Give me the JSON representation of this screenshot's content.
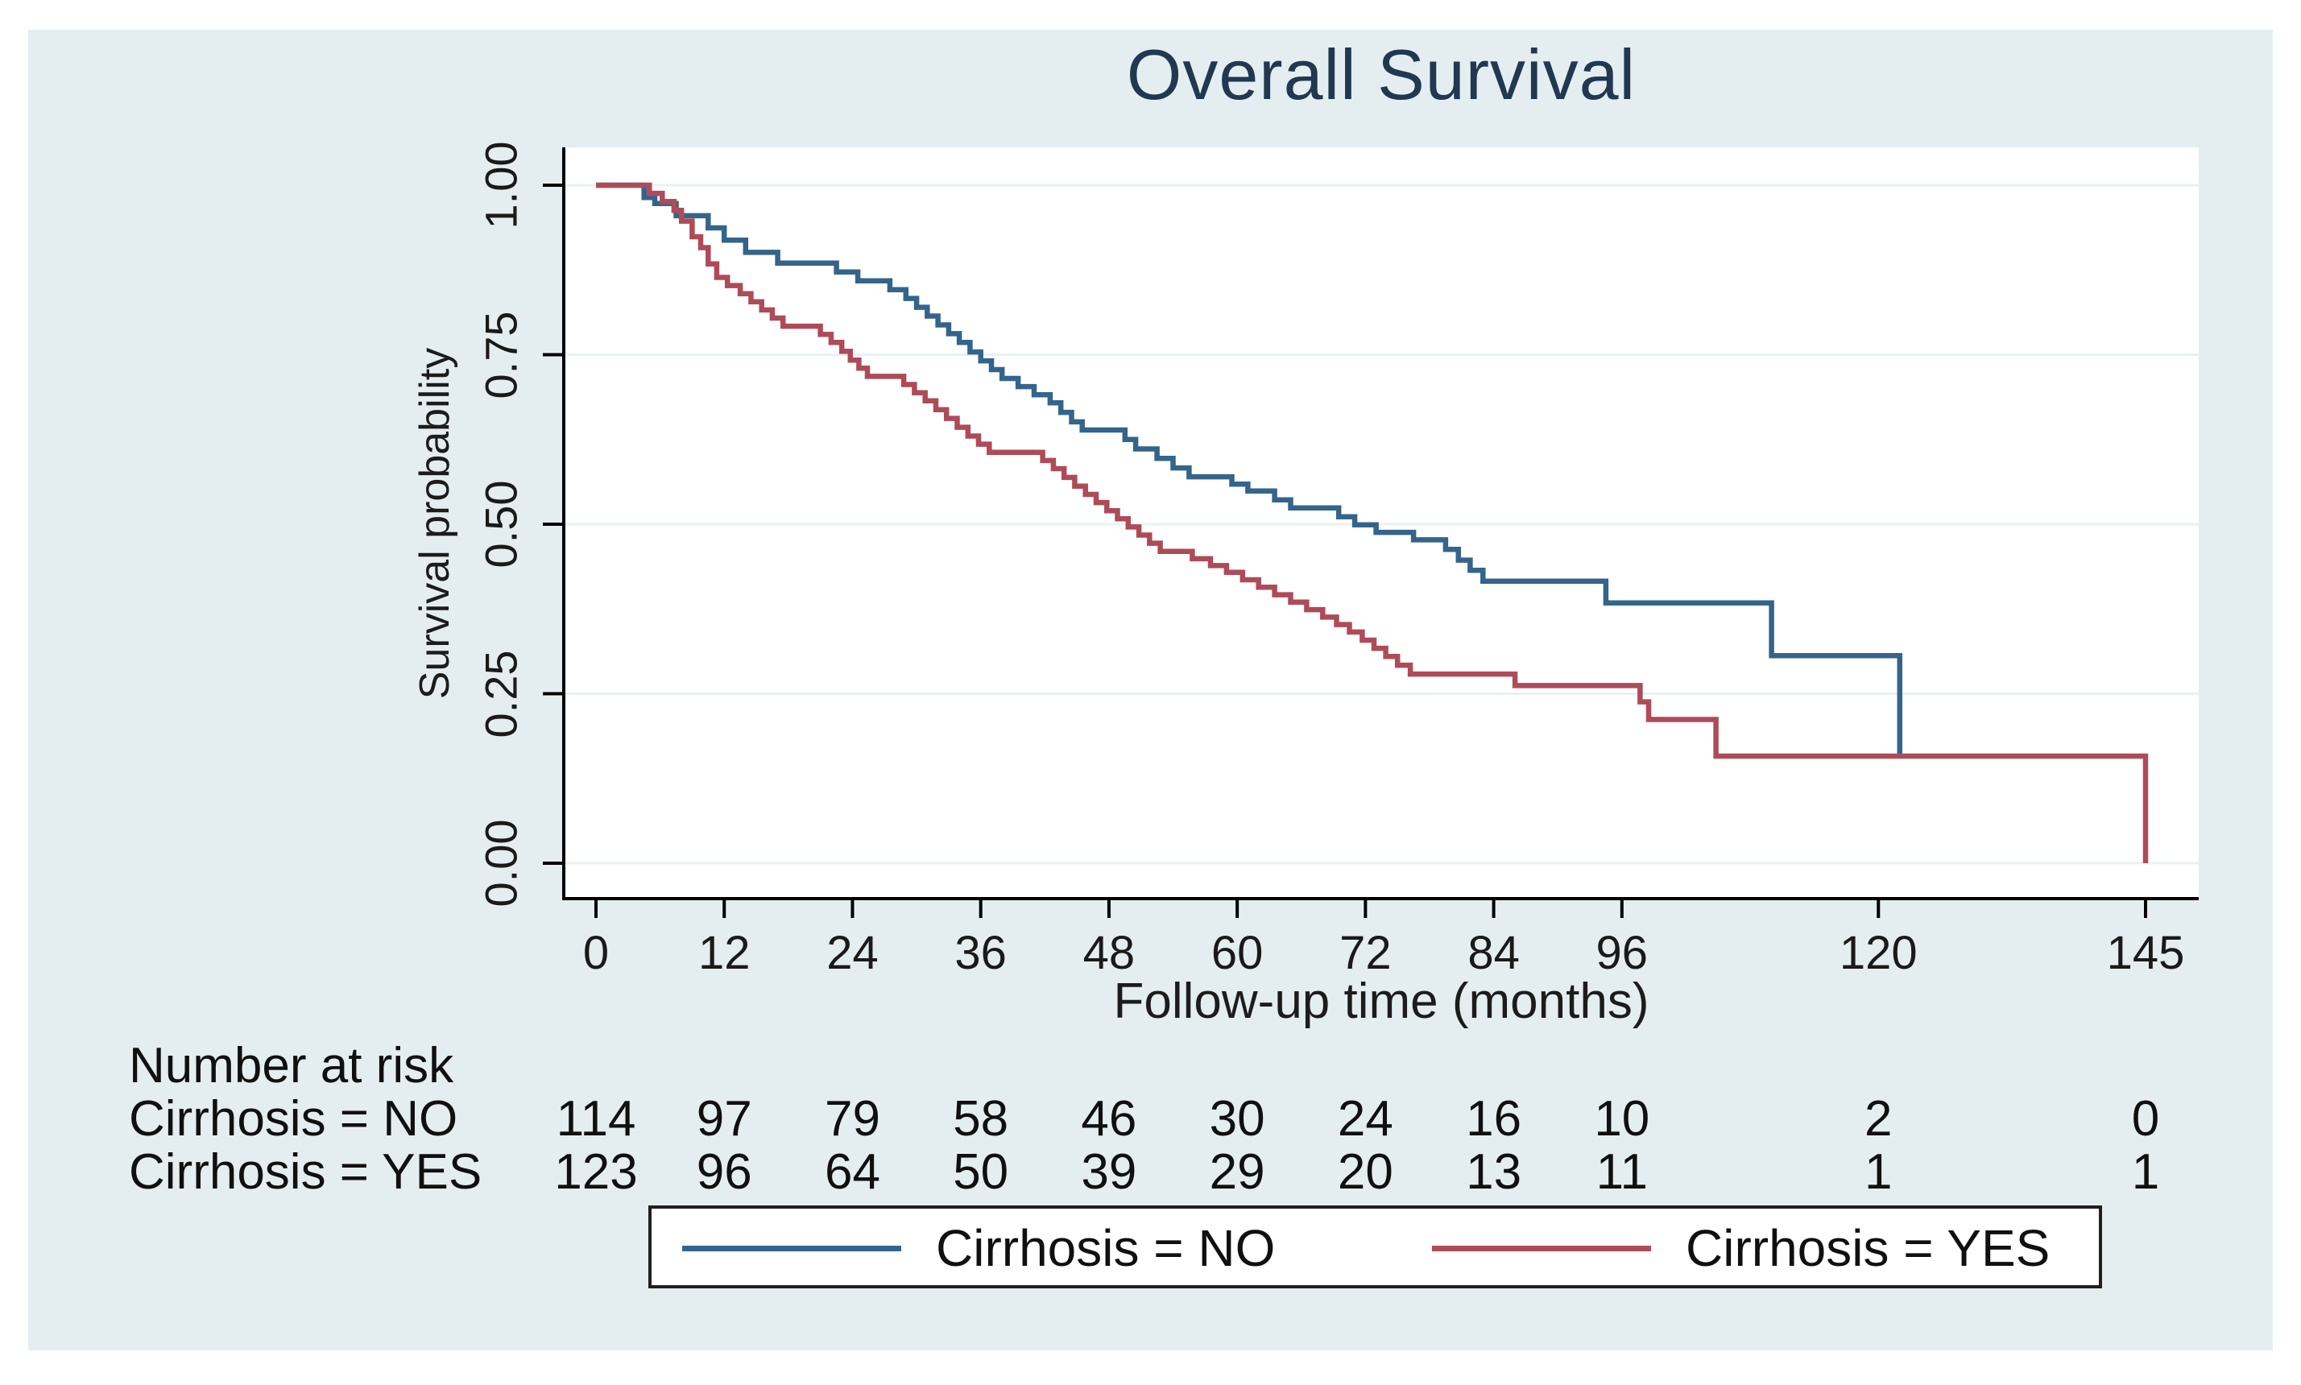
{
  "title": "Overall Survival",
  "axes": {
    "x_title": "Follow-up time (months)",
    "y_title": "Survival probability",
    "x_tick_labels": [
      "0",
      "12",
      "24",
      "36",
      "48",
      "60",
      "72",
      "84",
      "96",
      "120",
      "145"
    ],
    "y_tick_labels": [
      "0.00",
      "0.25",
      "0.50",
      "0.75",
      "1.00"
    ]
  },
  "risk_table": {
    "header": "Number at risk",
    "rows": [
      {
        "label": "Cirrhosis = NO",
        "values": [
          "114",
          "97",
          "79",
          "58",
          "46",
          "30",
          "24",
          "16",
          "10",
          "2",
          "0"
        ]
      },
      {
        "label": "Cirrhosis = YES",
        "values": [
          "123",
          "96",
          "64",
          "50",
          "39",
          "29",
          "20",
          "13",
          "11",
          "1",
          "1"
        ]
      }
    ]
  },
  "legend": {
    "items": [
      {
        "label": "Cirrhosis = NO",
        "color": "#35648b"
      },
      {
        "label": "Cirrhosis = YES",
        "color": "#ae4b59"
      }
    ]
  },
  "colors": {
    "panel_background": "#e4eef1",
    "plot_background": "#ffffff",
    "gridline": "#e9f1f3",
    "axis": "#000000",
    "title_text": "#223851",
    "body_text": "#101010",
    "series_no": "#35648b",
    "series_yes": "#ae4b59"
  },
  "chart_data": {
    "type": "line",
    "subtype": "kaplan-meier-step",
    "title": "Overall Survival",
    "xlabel": "Follow-up time (months)",
    "ylabel": "Survival probability",
    "xlim": [
      0,
      145
    ],
    "ylim": [
      0.0,
      1.0
    ],
    "x_ticks": [
      0,
      12,
      24,
      36,
      48,
      60,
      72,
      84,
      96,
      120,
      145
    ],
    "y_ticks": [
      0.0,
      0.25,
      0.5,
      0.75,
      1.0
    ],
    "grid": "horizontal",
    "legend_position": "bottom",
    "series": [
      {
        "name": "Cirrhosis = NO",
        "color": "#35648b",
        "step_points": [
          [
            0,
            1.0
          ],
          [
            4.5,
            0.982
          ],
          [
            5.5,
            0.973
          ],
          [
            7.5,
            0.955
          ],
          [
            10.5,
            0.937
          ],
          [
            12,
            0.919
          ],
          [
            14,
            0.901
          ],
          [
            17,
            0.885
          ],
          [
            22.5,
            0.872
          ],
          [
            24.5,
            0.859
          ],
          [
            27.5,
            0.846
          ],
          [
            29,
            0.833
          ],
          [
            30,
            0.82
          ],
          [
            31,
            0.807
          ],
          [
            32,
            0.794
          ],
          [
            33,
            0.781
          ],
          [
            34,
            0.768
          ],
          [
            35,
            0.754
          ],
          [
            36,
            0.741
          ],
          [
            37,
            0.728
          ],
          [
            38,
            0.715
          ],
          [
            39.5,
            0.703
          ],
          [
            41,
            0.691
          ],
          [
            42.5,
            0.679
          ],
          [
            43.5,
            0.665
          ],
          [
            44.5,
            0.651
          ],
          [
            45.5,
            0.639
          ],
          [
            49.5,
            0.625
          ],
          [
            50.5,
            0.611
          ],
          [
            52.5,
            0.597
          ],
          [
            54,
            0.583
          ],
          [
            55.5,
            0.57
          ],
          [
            59.5,
            0.559
          ],
          [
            61,
            0.549
          ],
          [
            63.5,
            0.536
          ],
          [
            65,
            0.524
          ],
          [
            69.5,
            0.511
          ],
          [
            71,
            0.499
          ],
          [
            73,
            0.488
          ],
          [
            76.5,
            0.477
          ],
          [
            79.5,
            0.463
          ],
          [
            80.7,
            0.447
          ],
          [
            81.8,
            0.432
          ],
          [
            83,
            0.416
          ],
          [
            94.5,
            0.384
          ],
          [
            110,
            0.306
          ],
          [
            122,
            0.155
          ]
        ]
      },
      {
        "name": "Cirrhosis = YES",
        "color": "#ae4b59",
        "step_points": [
          [
            0,
            1.0
          ],
          [
            5,
            0.988
          ],
          [
            6.2,
            0.976
          ],
          [
            7.3,
            0.963
          ],
          [
            8,
            0.947
          ],
          [
            9,
            0.924
          ],
          [
            9.8,
            0.908
          ],
          [
            10.5,
            0.884
          ],
          [
            11.3,
            0.864
          ],
          [
            12.3,
            0.852
          ],
          [
            13.5,
            0.84
          ],
          [
            14.5,
            0.828
          ],
          [
            15.5,
            0.816
          ],
          [
            16.5,
            0.804
          ],
          [
            17.5,
            0.792
          ],
          [
            21,
            0.78
          ],
          [
            22,
            0.768
          ],
          [
            23,
            0.755
          ],
          [
            23.8,
            0.742
          ],
          [
            24.6,
            0.73
          ],
          [
            25.4,
            0.718
          ],
          [
            28.8,
            0.706
          ],
          [
            29.8,
            0.694
          ],
          [
            30.8,
            0.682
          ],
          [
            31.8,
            0.669
          ],
          [
            32.8,
            0.656
          ],
          [
            33.8,
            0.643
          ],
          [
            34.8,
            0.63
          ],
          [
            35.8,
            0.618
          ],
          [
            36.8,
            0.606
          ],
          [
            41.8,
            0.594
          ],
          [
            42.8,
            0.582
          ],
          [
            43.8,
            0.569
          ],
          [
            44.8,
            0.556
          ],
          [
            45.8,
            0.544
          ],
          [
            46.8,
            0.532
          ],
          [
            47.8,
            0.52
          ],
          [
            48.8,
            0.508
          ],
          [
            49.8,
            0.496
          ],
          [
            50.8,
            0.484
          ],
          [
            51.8,
            0.472
          ],
          [
            52.8,
            0.46
          ],
          [
            55.8,
            0.449
          ],
          [
            57.5,
            0.439
          ],
          [
            59,
            0.429
          ],
          [
            60.5,
            0.418
          ],
          [
            62,
            0.407
          ],
          [
            63.5,
            0.396
          ],
          [
            65,
            0.385
          ],
          [
            66.5,
            0.374
          ],
          [
            68,
            0.363
          ],
          [
            69.3,
            0.352
          ],
          [
            70.5,
            0.341
          ],
          [
            71.7,
            0.329
          ],
          [
            72.8,
            0.317
          ],
          [
            73.9,
            0.305
          ],
          [
            75,
            0.292
          ],
          [
            76.2,
            0.279
          ],
          [
            86,
            0.262
          ],
          [
            97.7,
            0.238
          ],
          [
            98.5,
            0.212
          ],
          [
            104.8,
            0.158
          ],
          [
            145,
            0.158
          ],
          [
            145,
            0.0
          ]
        ]
      }
    ],
    "number_at_risk": {
      "times": [
        0,
        12,
        24,
        36,
        48,
        60,
        72,
        84,
        96,
        120,
        145
      ],
      "groups": [
        {
          "name": "Cirrhosis = NO",
          "counts": [
            114,
            97,
            79,
            58,
            46,
            30,
            24,
            16,
            10,
            2,
            0
          ]
        },
        {
          "name": "Cirrhosis = YES",
          "counts": [
            123,
            96,
            64,
            50,
            39,
            29,
            20,
            13,
            11,
            1,
            1
          ]
        }
      ]
    }
  }
}
